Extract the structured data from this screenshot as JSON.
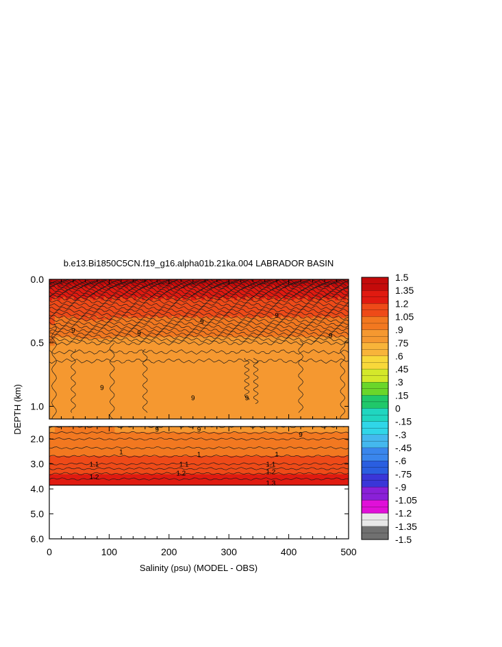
{
  "chart_data": {
    "type": "heatmap",
    "title": "b.e13.Bi1850C5CN.f19_g16.alpha01b.21ka.004 LABRADOR BASIN",
    "xlabel": "Salinity (psu) (MODEL - OBS)",
    "ylabel": "DEPTH (km)",
    "xlim": [
      0,
      500
    ],
    "x_ticks": [
      "0",
      "100",
      "200",
      "300",
      "400",
      "500"
    ],
    "upper_panel": {
      "ylim": [
        0.0,
        1.1
      ],
      "y_ticks": [
        "0.0",
        "0.5",
        "1.0"
      ]
    },
    "lower_panel": {
      "ylim": [
        1.5,
        6.0
      ],
      "y_ticks": [
        "2.0",
        "3.0",
        "4.0",
        "5.0",
        "6.0"
      ]
    },
    "bottom_depth_km": 3.85,
    "depth_profile": {
      "depth_km": [
        0.0,
        0.03,
        0.08,
        0.15,
        0.25,
        0.35,
        0.5,
        0.7,
        1.0,
        1.1,
        1.5,
        2.0,
        2.5,
        3.0,
        3.3,
        3.6,
        3.85
      ],
      "value": [
        1.5,
        1.4,
        1.3,
        1.2,
        1.1,
        1.0,
        0.85,
        0.78,
        0.76,
        0.76,
        0.85,
        0.95,
        1.02,
        1.1,
        1.18,
        1.25,
        1.3
      ]
    },
    "contour_labels": [
      {
        "text": "9",
        "x": 150,
        "depth": 0.42
      },
      {
        "text": "9",
        "x": 255,
        "depth": 0.33
      },
      {
        "text": "9",
        "x": 380,
        "depth": 0.28
      },
      {
        "text": "9",
        "x": 40,
        "depth": 0.4
      },
      {
        "text": "9",
        "x": 88,
        "depth": 0.85
      },
      {
        "text": "9",
        "x": 240,
        "depth": 0.93
      },
      {
        "text": "9",
        "x": 330,
        "depth": 0.93
      },
      {
        "text": "9",
        "x": 470,
        "depth": 0.44
      },
      {
        "text": "9",
        "x": 180,
        "depth": 1.6
      },
      {
        "text": "9",
        "x": 250,
        "depth": 1.6
      },
      {
        "text": "9",
        "x": 420,
        "depth": 1.8
      },
      {
        "text": "1",
        "x": 120,
        "depth": 2.5
      },
      {
        "text": "1",
        "x": 250,
        "depth": 2.6
      },
      {
        "text": "1",
        "x": 380,
        "depth": 2.6
      },
      {
        "text": "1.1",
        "x": 75,
        "depth": 3.0
      },
      {
        "text": "1.1",
        "x": 225,
        "depth": 3.0
      },
      {
        "text": "1.1",
        "x": 370,
        "depth": 3.0
      },
      {
        "text": "1.2",
        "x": 75,
        "depth": 3.5
      },
      {
        "text": "1.2",
        "x": 220,
        "depth": 3.35
      },
      {
        "text": "1.2",
        "x": 370,
        "depth": 3.3
      },
      {
        "text": "1.3",
        "x": 370,
        "depth": 3.75
      }
    ],
    "colorbar": {
      "labels": [
        "1.5",
        "1.35",
        "1.2",
        "1.05",
        ".9",
        ".75",
        ".6",
        ".45",
        ".3",
        ".15",
        "0",
        "-.15",
        "-.3",
        "-.45",
        "-.6",
        "-.75",
        "-.9",
        "-1.05",
        "-1.2",
        "-1.35",
        "-1.5"
      ],
      "stops": [
        {
          "value": 1.5,
          "color": "#a80000"
        },
        {
          "value": 1.35,
          "color": "#c40a0a"
        },
        {
          "value": 1.2,
          "color": "#e01a10"
        },
        {
          "value": 1.05,
          "color": "#ee4a18"
        },
        {
          "value": 0.9,
          "color": "#f27820"
        },
        {
          "value": 0.75,
          "color": "#f59830"
        },
        {
          "value": 0.6,
          "color": "#f8b43a"
        },
        {
          "value": 0.45,
          "color": "#f8d83a"
        },
        {
          "value": 0.3,
          "color": "#d4e82a"
        },
        {
          "value": 0.15,
          "color": "#6ad62a"
        },
        {
          "value": 0.0,
          "color": "#20c86a"
        },
        {
          "value": -0.15,
          "color": "#20d6c0"
        },
        {
          "value": -0.3,
          "color": "#30d6e8"
        },
        {
          "value": -0.45,
          "color": "#44b8ee"
        },
        {
          "value": -0.6,
          "color": "#3a86ec"
        },
        {
          "value": -0.75,
          "color": "#2a5ee0"
        },
        {
          "value": -0.9,
          "color": "#3a36d8"
        },
        {
          "value": -1.05,
          "color": "#8a20d8"
        },
        {
          "value": -1.2,
          "color": "#e010d8"
        },
        {
          "value": -1.35,
          "color": "#e8e8e8"
        },
        {
          "value": -1.5,
          "color": "#707070"
        }
      ]
    }
  }
}
